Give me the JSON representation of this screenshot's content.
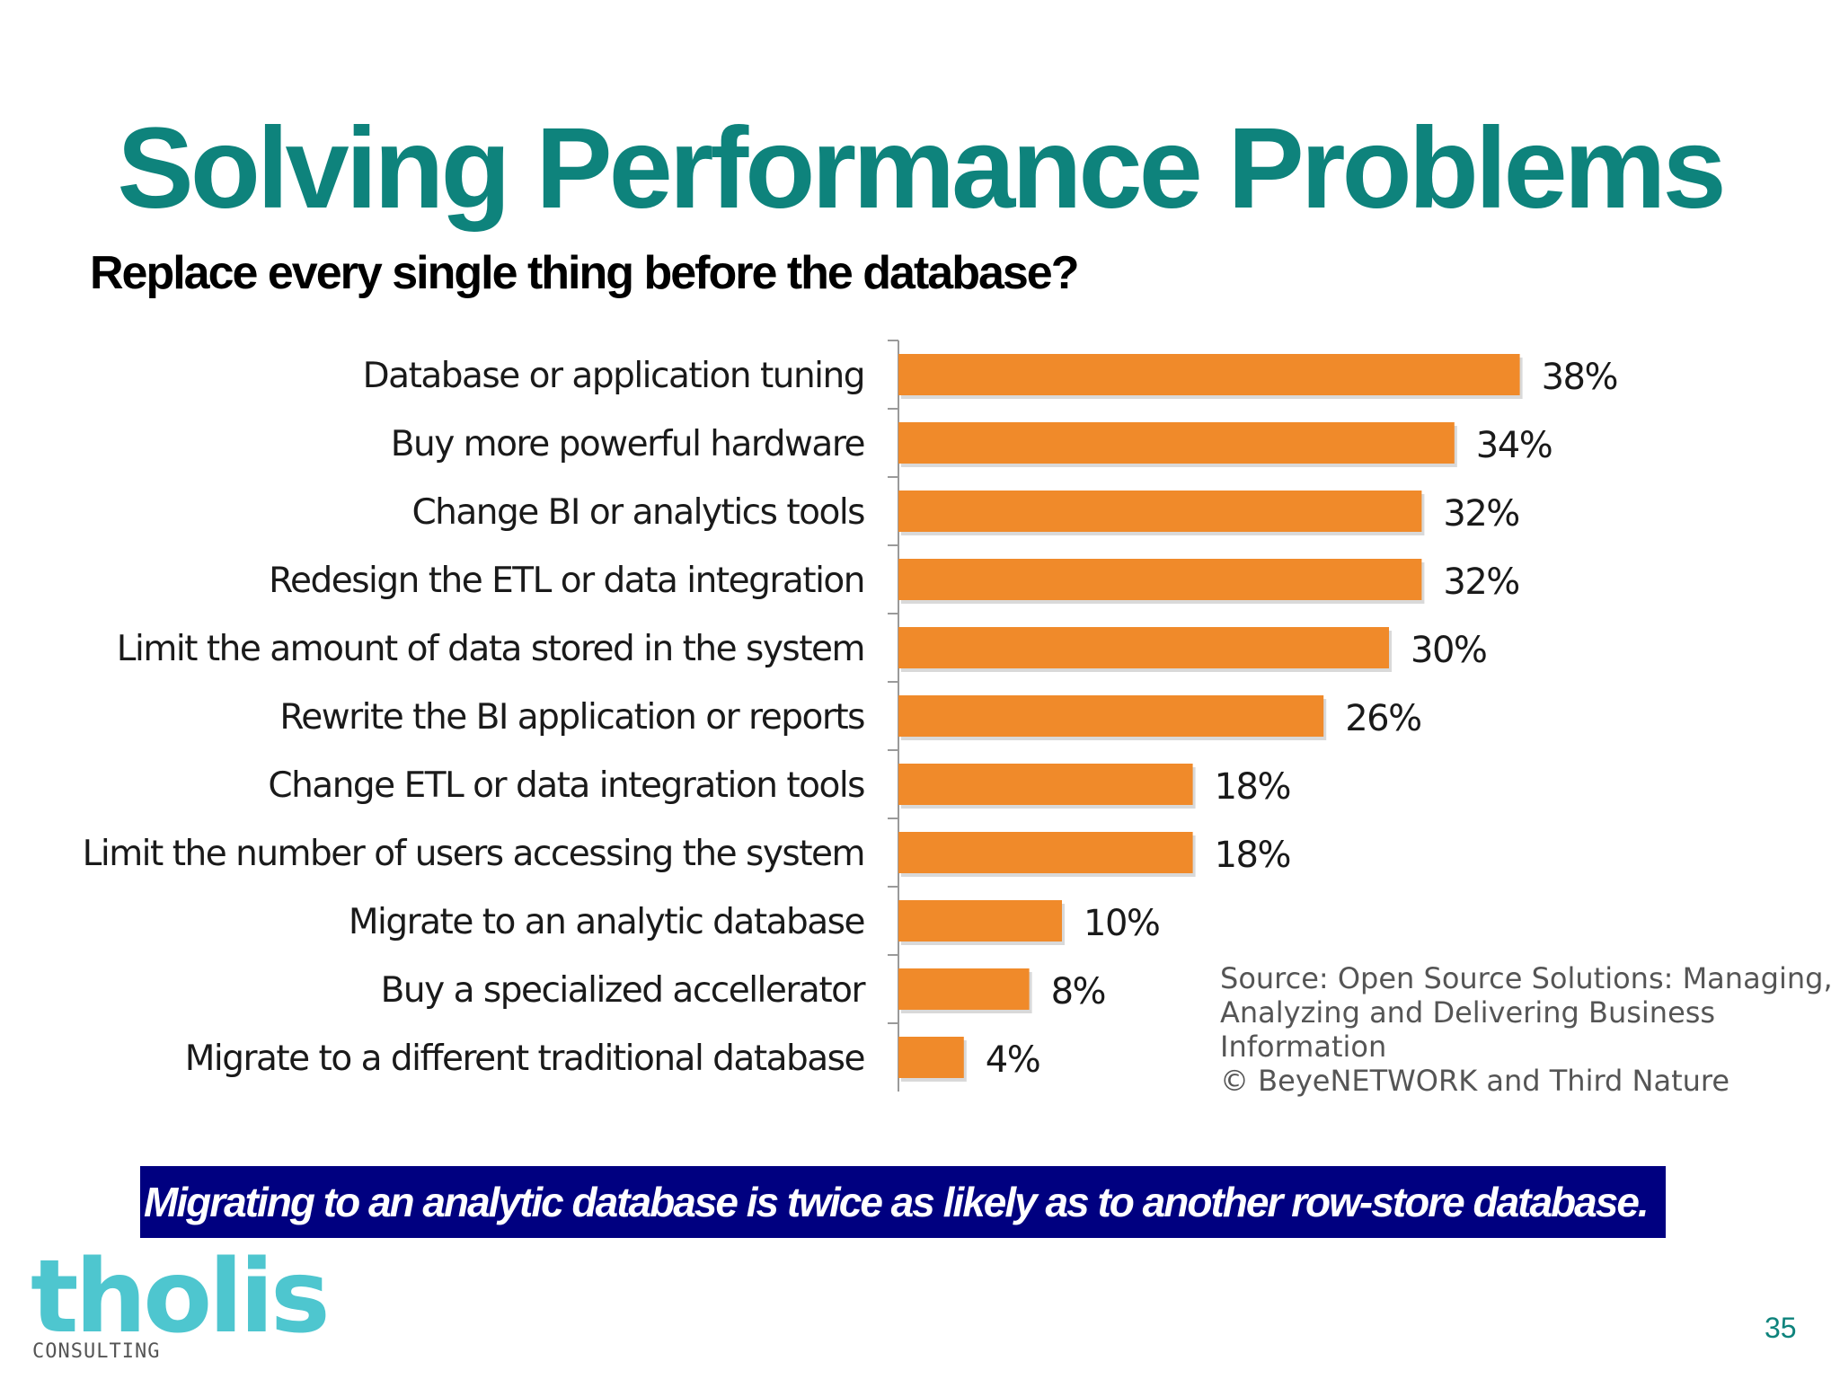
{
  "slide": {
    "title": "Solving Performance Problems",
    "subtitle": "Replace every single thing before the database?",
    "callout": "Migrating to an analytic database is twice as likely as to another row-store database.",
    "page_number": "35",
    "colors": {
      "title": "#0e837c",
      "bar": "#f08a2a",
      "callout_bg": "#000080",
      "logo": "#4ec6cf"
    }
  },
  "source": {
    "lines": [
      "Source: Open Source Solutions: Managing,",
      "Analyzing and Delivering Business",
      "Information",
      "© BeyeNETWORK and Third Nature"
    ]
  },
  "logo": {
    "word": "tholis",
    "sub": "CONSULTING"
  },
  "chart_data": {
    "type": "bar",
    "orientation": "horizontal",
    "categories": [
      "Database or application tuning",
      "Buy more powerful hardware",
      "Change BI or analytics tools",
      "Redesign the ETL or data integration",
      "Limit the amount of data stored in the system",
      "Rewrite the BI application or reports",
      "Change ETL or data integration tools",
      "Limit the number of users accessing the system",
      "Migrate to an analytic database",
      "Buy a specialized accellerator",
      "Migrate to a different traditional database"
    ],
    "values": [
      38,
      34,
      32,
      32,
      30,
      26,
      18,
      18,
      10,
      8,
      4
    ],
    "data_labels": [
      "38%",
      "34%",
      "32%",
      "32%",
      "30%",
      "26%",
      "18%",
      "18%",
      "10%",
      "8%",
      "4%"
    ],
    "unit": "%",
    "xlim": [
      0,
      40
    ],
    "grid": false,
    "legend": "none",
    "bar_color": "#f08a2a"
  }
}
